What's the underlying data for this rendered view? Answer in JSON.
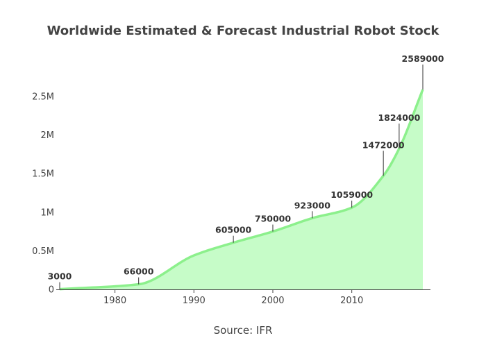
{
  "chart_data": {
    "type": "area",
    "title": "Worldwide Estimated & Forecast Industrial Robot Stock",
    "source": "Source: IFR",
    "x": [
      1973,
      1983,
      1990,
      1995,
      2000,
      2005,
      2010,
      2014,
      2016,
      2019
    ],
    "y": [
      3000,
      66000,
      440000,
      605000,
      750000,
      923000,
      1059000,
      1472000,
      1824000,
      2589000
    ],
    "annotations": [
      {
        "x": 1973,
        "y": 3000,
        "text": "3000"
      },
      {
        "x": 1983,
        "y": 66000,
        "text": "66000"
      },
      {
        "x": 1995,
        "y": 605000,
        "text": "605000"
      },
      {
        "x": 2000,
        "y": 750000,
        "text": "750000"
      },
      {
        "x": 2005,
        "y": 923000,
        "text": "923000"
      },
      {
        "x": 2010,
        "y": 1059000,
        "text": "1059000"
      },
      {
        "x": 2014,
        "y": 1472000,
        "text": "1472000"
      },
      {
        "x": 2016,
        "y": 1824000,
        "text": "1824000"
      },
      {
        "x": 2019,
        "y": 2589000,
        "text": "2589000"
      }
    ],
    "xticks": [
      1980,
      1990,
      2000,
      2010
    ],
    "xtick_labels": [
      "1980",
      "1990",
      "2000",
      "2010"
    ],
    "yticks": [
      0,
      500000,
      1000000,
      1500000,
      2000000,
      2500000
    ],
    "ytick_labels": [
      "0",
      "0.5M",
      "1M",
      "1.5M",
      "2M",
      "2.5M"
    ],
    "xlim": [
      1973,
      2019
    ],
    "ylim": [
      0,
      2589000
    ],
    "grid": false,
    "colors": {
      "fill": "#c6fcc8",
      "line": "#8cf08c",
      "axis": "#444444",
      "arrow": "#333333"
    }
  }
}
